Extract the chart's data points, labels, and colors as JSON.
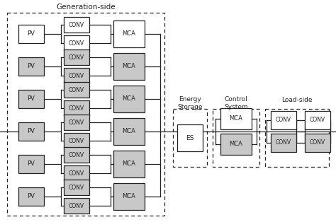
{
  "bg_color": "#ffffff",
  "box_color_white": "#ffffff",
  "box_color_gray": "#c8c8c8",
  "box_border": "#222222",
  "line_color": "#222222",
  "text_color": "#222222",
  "figsize": [
    4.74,
    3.14
  ],
  "dpi": 100,
  "gen_title": "Generation-side",
  "es_title": "Energy\nStorage",
  "ctrl_title": "Control\nSystem",
  "load_title": "Load-side",
  "gray_rows": [
    false,
    true,
    true,
    true,
    true,
    true
  ],
  "row_mca_gray": [
    false,
    true,
    true,
    true,
    true,
    true
  ],
  "row_conv_gray": [
    false,
    true,
    true,
    true,
    true,
    true
  ]
}
